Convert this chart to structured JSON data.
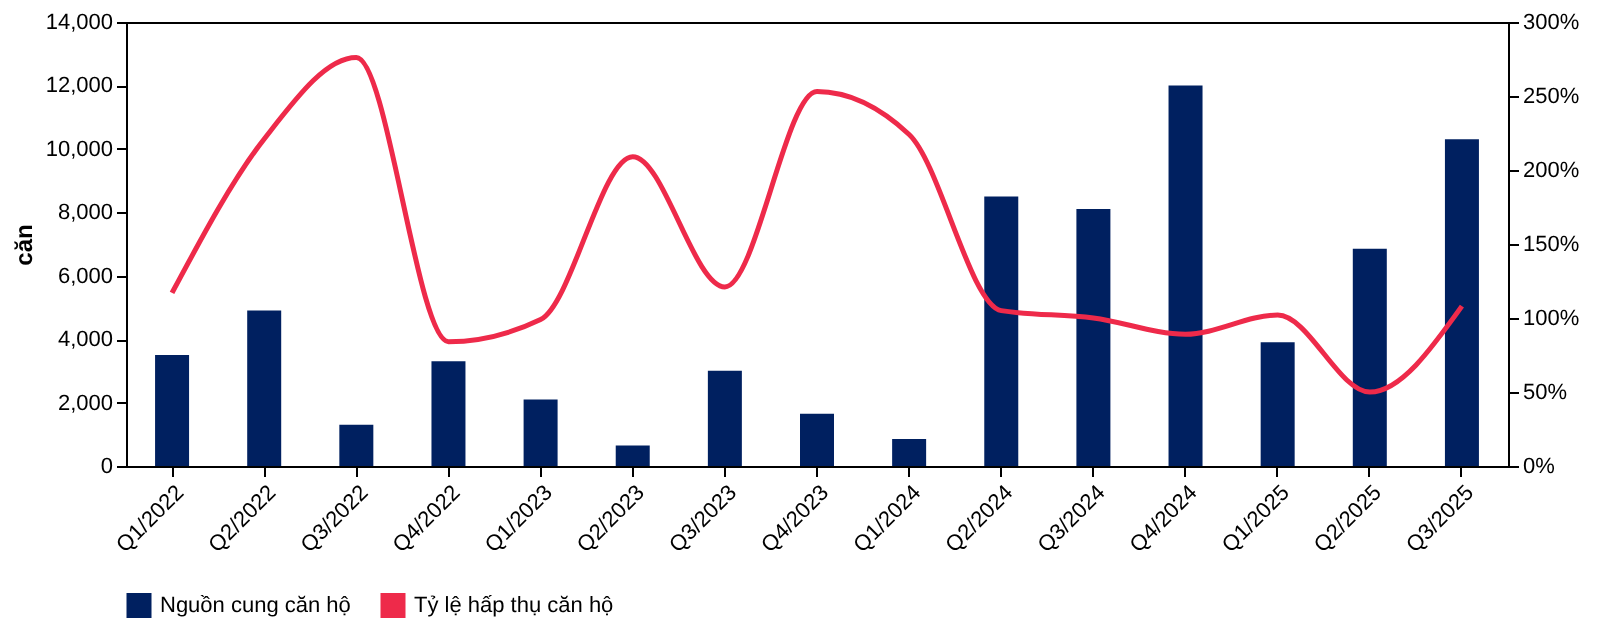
{
  "chart_data": {
    "type": "bar",
    "ylabel": "căn",
    "categories": [
      "Q1/2022",
      "Q2/2022",
      "Q3/2022",
      "Q4/2022",
      "Q1/2023",
      "Q2/2023",
      "Q3/2023",
      "Q4/2023",
      "Q1/2024",
      "Q2/2024",
      "Q3/2024",
      "Q4/2024",
      "Q1/2025",
      "Q2/2025",
      "Q3/2025"
    ],
    "series": [
      {
        "name": "Nguồn cung căn hộ",
        "color": "#002060",
        "values": [
          3500,
          4900,
          1300,
          3300,
          2100,
          650,
          3000,
          1650,
          850,
          8500,
          8100,
          12000,
          3900,
          6850,
          10300
        ]
      },
      {
        "name": "Tỷ lệ hấp thụ căn hộ",
        "type": "line",
        "axis": "y2",
        "color": "#ee2a4a",
        "values": [
          117,
          221,
          276,
          84,
          99,
          209,
          121,
          253,
          224,
          105,
          100,
          89,
          102,
          50,
          108
        ]
      }
    ],
    "ylim": [
      0,
      14000
    ],
    "yticks": [
      {
        "value": 0,
        "label": "0"
      },
      {
        "value": 2000,
        "label": "2,000"
      },
      {
        "value": 4000,
        "label": "4,000"
      },
      {
        "value": 6000,
        "label": "6,000"
      },
      {
        "value": 8000,
        "label": "8,000"
      },
      {
        "value": 10000,
        "label": "10,000"
      },
      {
        "value": 12000,
        "label": "12,000"
      },
      {
        "value": 14000,
        "label": "14,000"
      }
    ],
    "y2lim": [
      0,
      300
    ],
    "y2ticks": [
      {
        "value": 0,
        "label": "0%"
      },
      {
        "value": 50,
        "label": "50%"
      },
      {
        "value": 100,
        "label": "100%"
      },
      {
        "value": 150,
        "label": "150%"
      },
      {
        "value": 200,
        "label": "200%"
      },
      {
        "value": 250,
        "label": "250%"
      },
      {
        "value": 300,
        "label": "300%"
      }
    ],
    "grid": false,
    "legend": "bottom"
  }
}
